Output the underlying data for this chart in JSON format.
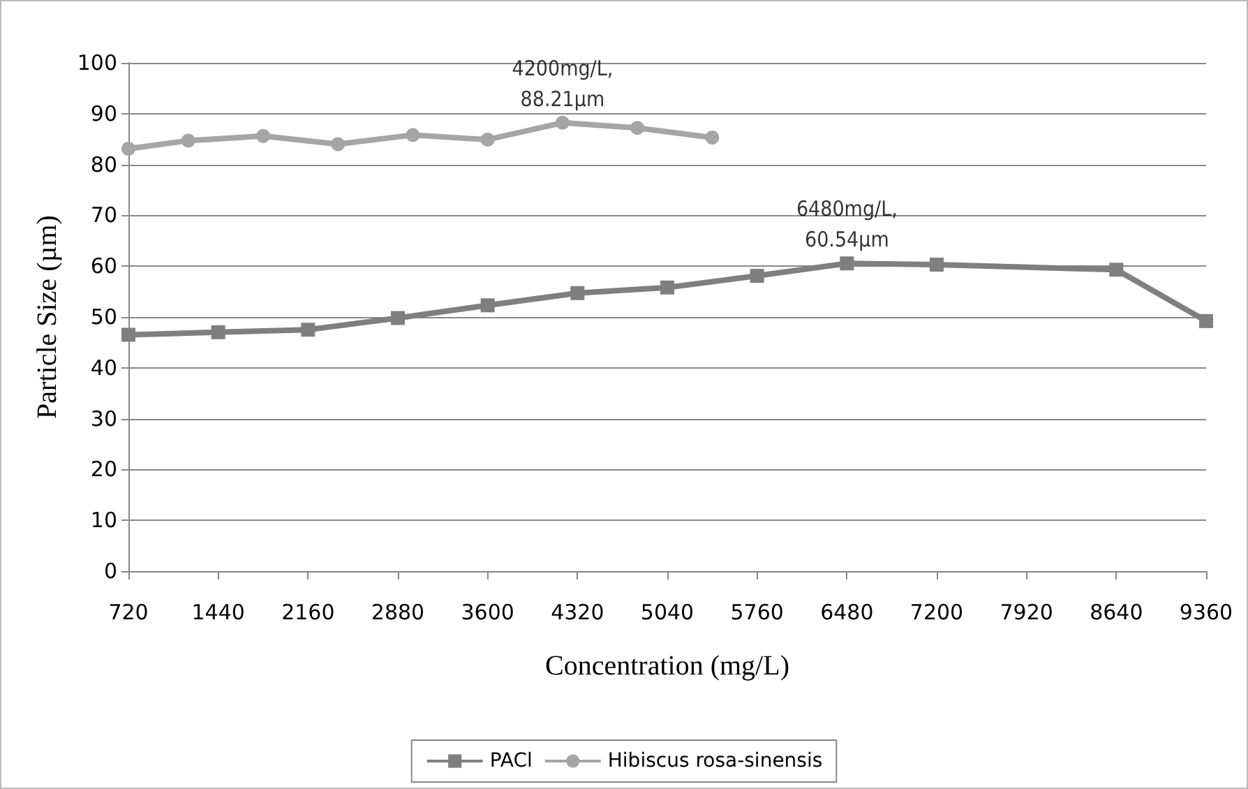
{
  "chart_data": {
    "type": "line",
    "xlabel": "Concentration (mg/L)",
    "ylabel": "Particle Size (µm)",
    "xlim": [
      720,
      9360
    ],
    "xticks": [
      720,
      1440,
      2160,
      2880,
      3600,
      4320,
      5040,
      5760,
      6480,
      7200,
      7920,
      8640,
      9360
    ],
    "ylim": [
      0,
      100
    ],
    "yticks": [
      0,
      10,
      20,
      30,
      40,
      50,
      60,
      70,
      80,
      90,
      100
    ],
    "grid": "y",
    "legend": "bottom",
    "series": [
      {
        "name": "PACl",
        "color": "#7f7f7f",
        "marker": "square",
        "x": [
          720,
          1440,
          2160,
          2880,
          3600,
          4320,
          5040,
          5760,
          6480,
          7200,
          8640,
          9360
        ],
        "values": [
          46.5,
          47,
          47.5,
          49.8,
          52.3,
          54.7,
          55.8,
          58.1,
          60.54,
          60.3,
          59.3,
          49.2
        ]
      },
      {
        "name": "Hibiscus rosa-sinensis",
        "color": "#a5a5a5",
        "marker": "circle",
        "x": [
          720,
          1200,
          1800,
          2400,
          3000,
          3600,
          4200,
          4800,
          5400
        ],
        "values": [
          83.1,
          84.7,
          85.6,
          84.0,
          85.8,
          84.9,
          88.21,
          87.2,
          85.3
        ]
      }
    ],
    "annotations": [
      {
        "text": "6480mg/L,\n60.54µm",
        "x": 6480,
        "y": 60.54
      },
      {
        "text": "4200mg/L,\n88.21µm",
        "x": 4200,
        "y": 88.21
      }
    ]
  }
}
